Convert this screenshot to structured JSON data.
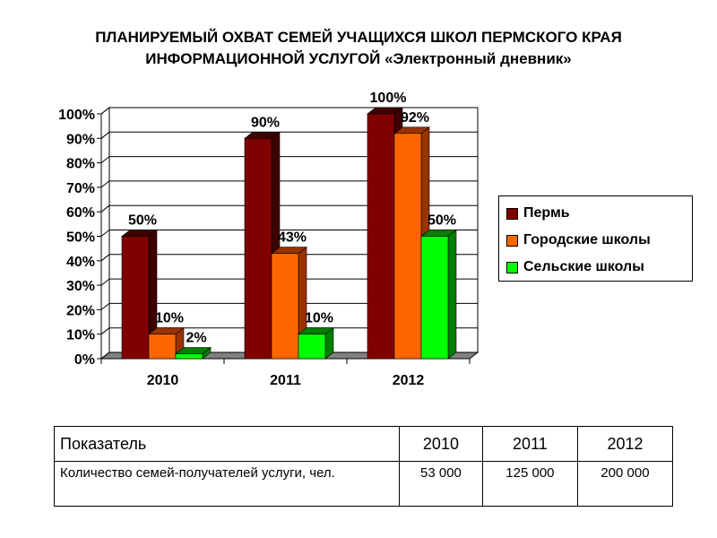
{
  "title_line1": "ПЛАНИРУЕМЫЙ ОХВАТ СЕМЕЙ УЧАЩИХСЯ ШКОЛ ПЕРМСКОГО КРАЯ",
  "title_line2": "ИНФОРМАЦИОННОЙ УСЛУГОЙ «Электронный дневник»",
  "chart_data": {
    "type": "bar",
    "title": "ПЛАНИРУЕМЫЙ ОХВАТ СЕМЕЙ УЧАЩИХСЯ ШКОЛ ПЕРМСКОГО КРАЯ ИНФОРМАЦИОННОЙ УСЛУГОЙ «Электронный дневник»",
    "categories": [
      "2010",
      "2011",
      "2012"
    ],
    "series": [
      {
        "name": "Пермь",
        "values": [
          50,
          90,
          100
        ],
        "labels": [
          "50%",
          "90%",
          "100%"
        ],
        "color": "#800000",
        "side": "#3f0000"
      },
      {
        "name": "Городские школы",
        "values": [
          10,
          43,
          92
        ],
        "labels": [
          "10%",
          "43%",
          "92%"
        ],
        "color": "#ff6600",
        "side": "#993300"
      },
      {
        "name": "Сельские школы",
        "values": [
          2,
          10,
          50
        ],
        "labels": [
          "2%",
          "10%",
          "50%"
        ],
        "color": "#00ff00",
        "side": "#008000"
      }
    ],
    "yticks": [
      "0%",
      "10%",
      "20%",
      "30%",
      "40%",
      "50%",
      "60%",
      "70%",
      "80%",
      "90%",
      "100%"
    ],
    "ylim": [
      0,
      100
    ],
    "grid": true,
    "legend": "right",
    "xlabel": "",
    "ylabel": ""
  },
  "table": {
    "header": [
      "Показатель",
      "2010",
      "2011",
      "2012"
    ],
    "rows": [
      [
        "Количество семей-получателей услуги, чел.",
        "53 000",
        "125 000",
        "200 000"
      ]
    ]
  }
}
